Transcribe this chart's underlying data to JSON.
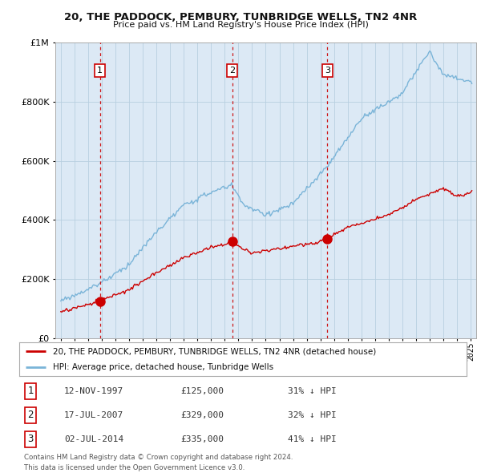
{
  "title": "20, THE PADDOCK, PEMBURY, TUNBRIDGE WELLS, TN2 4NR",
  "subtitle": "Price paid vs. HM Land Registry's House Price Index (HPI)",
  "legend_line1": "20, THE PADDOCK, PEMBURY, TUNBRIDGE WELLS, TN2 4NR (detached house)",
  "legend_line2": "HPI: Average price, detached house, Tunbridge Wells",
  "footnote1": "Contains HM Land Registry data © Crown copyright and database right 2024.",
  "footnote2": "This data is licensed under the Open Government Licence v3.0.",
  "transactions": [
    {
      "num": 1,
      "date": "12-NOV-1997",
      "price": 125000,
      "hpi_diff": "31% ↓ HPI",
      "year": 1997.87
    },
    {
      "num": 2,
      "date": "17-JUL-2007",
      "price": 329000,
      "hpi_diff": "32% ↓ HPI",
      "year": 2007.54
    },
    {
      "num": 3,
      "date": "02-JUL-2014",
      "price": 335000,
      "hpi_diff": "41% ↓ HPI",
      "year": 2014.5
    }
  ],
  "hpi_color": "#7ab4d8",
  "price_color": "#cc0000",
  "vline_color": "#cc0000",
  "background_color": "#ffffff",
  "chart_bg_color": "#dce9f5",
  "grid_color": "#b8cfe0",
  "ylim": [
    0,
    1000000
  ],
  "xlim_start": 1994.6,
  "xlim_end": 2025.4
}
